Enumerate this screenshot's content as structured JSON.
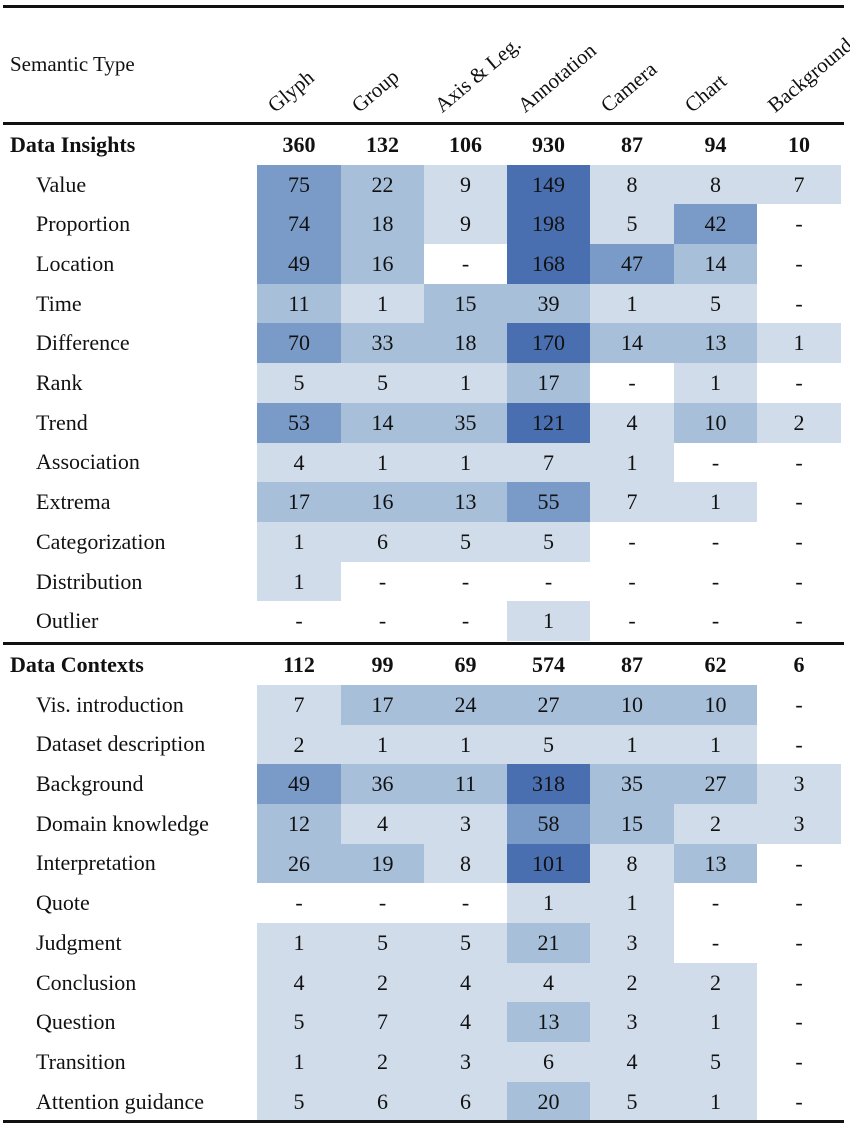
{
  "chart_data": {
    "type": "table",
    "corner_label": "Semantic Type",
    "columns": [
      "Glyph",
      "Group",
      "Axis & Leg.",
      "Annotation",
      "Camera",
      "Chart",
      "Background"
    ],
    "sections": [
      {
        "name": "Data Insights",
        "totals": [
          "360",
          "132",
          "106",
          "930",
          "87",
          "94",
          "10"
        ],
        "rows": [
          {
            "label": "Value",
            "values": [
              "75",
              "22",
              "9",
              "149",
              "8",
              "8",
              "7"
            ]
          },
          {
            "label": "Proportion",
            "values": [
              "74",
              "18",
              "9",
              "198",
              "5",
              "42",
              "-"
            ]
          },
          {
            "label": "Location",
            "values": [
              "49",
              "16",
              "-",
              "168",
              "47",
              "14",
              "-"
            ]
          },
          {
            "label": "Time",
            "values": [
              "11",
              "1",
              "15",
              "39",
              "1",
              "5",
              "-"
            ]
          },
          {
            "label": "Difference",
            "values": [
              "70",
              "33",
              "18",
              "170",
              "14",
              "13",
              "1"
            ]
          },
          {
            "label": "Rank",
            "values": [
              "5",
              "5",
              "1",
              "17",
              "-",
              "1",
              "-"
            ]
          },
          {
            "label": "Trend",
            "values": [
              "53",
              "14",
              "35",
              "121",
              "4",
              "10",
              "2"
            ]
          },
          {
            "label": "Association",
            "values": [
              "4",
              "1",
              "1",
              "7",
              "1",
              "-",
              "-"
            ]
          },
          {
            "label": "Extrema",
            "values": [
              "17",
              "16",
              "13",
              "55",
              "7",
              "1",
              "-"
            ]
          },
          {
            "label": "Categorization",
            "values": [
              "1",
              "6",
              "5",
              "5",
              "-",
              "-",
              "-"
            ]
          },
          {
            "label": "Distribution",
            "values": [
              "1",
              "-",
              "-",
              "-",
              "-",
              "-",
              "-"
            ]
          },
          {
            "label": "Outlier",
            "values": [
              "-",
              "-",
              "-",
              "1",
              "-",
              "-",
              "-"
            ]
          }
        ]
      },
      {
        "name": "Data Contexts",
        "totals": [
          "112",
          "99",
          "69",
          "574",
          "87",
          "62",
          "6"
        ],
        "rows": [
          {
            "label": "Vis. introduction",
            "values": [
              "7",
              "17",
              "24",
              "27",
              "10",
              "10",
              "-"
            ]
          },
          {
            "label": "Dataset description",
            "values": [
              "2",
              "1",
              "1",
              "5",
              "1",
              "1",
              "-"
            ]
          },
          {
            "label": "Background",
            "values": [
              "49",
              "36",
              "11",
              "318",
              "35",
              "27",
              "3"
            ]
          },
          {
            "label": "Domain knowledge",
            "values": [
              "12",
              "4",
              "3",
              "58",
              "15",
              "2",
              "3"
            ]
          },
          {
            "label": "Interpretation",
            "values": [
              "26",
              "19",
              "8",
              "101",
              "8",
              "13",
              "-"
            ]
          },
          {
            "label": "Quote",
            "values": [
              "-",
              "-",
              "-",
              "1",
              "1",
              "-",
              "-"
            ]
          },
          {
            "label": "Judgment",
            "values": [
              "1",
              "5",
              "5",
              "21",
              "3",
              "-",
              "-"
            ]
          },
          {
            "label": "Conclusion",
            "values": [
              "4",
              "2",
              "4",
              "4",
              "2",
              "2",
              "-"
            ]
          },
          {
            "label": "Question",
            "values": [
              "5",
              "7",
              "4",
              "13",
              "3",
              "1",
              "-"
            ]
          },
          {
            "label": "Transition",
            "values": [
              "1",
              "2",
              "3",
              "6",
              "4",
              "5",
              "-"
            ]
          },
          {
            "label": "Attention guidance",
            "values": [
              "5",
              "6",
              "6",
              "20",
              "5",
              "1",
              "-"
            ]
          }
        ]
      }
    ],
    "colors": {
      "level1": "#d0dcea",
      "level2": "#a8bfd9",
      "level3": "#7a9bc7",
      "level4": "#4a6fb0",
      "empty": "#ffffff",
      "text": "#111111"
    }
  }
}
